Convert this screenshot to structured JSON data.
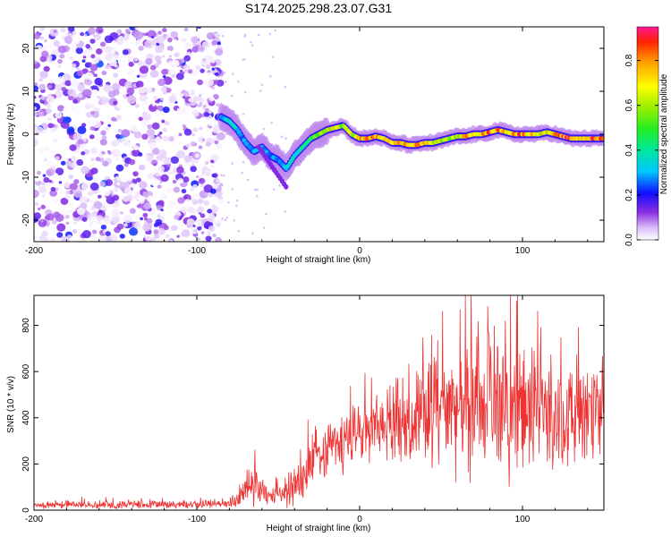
{
  "title": "S174.2025.298.23.07.G31",
  "colors": {
    "snr_line": "#ee3333",
    "axis": "#000000",
    "background": "#ffffff"
  },
  "chart_data": [
    {
      "type": "heatmap",
      "name": "spectrogram",
      "xlabel": "Height of straight line (km)",
      "ylabel": "Frequency (Hz)",
      "xlim": [
        -200,
        150
      ],
      "ylim": [
        -25,
        25
      ],
      "x_ticks": [
        -200,
        -100,
        0,
        100
      ],
      "y_ticks": [
        -20,
        -10,
        0,
        10,
        20
      ],
      "colorbar": {
        "label": "Normalized spectral amplitude",
        "range": [
          0,
          0.95
        ],
        "ticks": [
          "0.0",
          "0.2",
          "0.4",
          "0.6",
          "0.8"
        ],
        "tick_values": [
          0.0,
          0.2,
          0.4,
          0.6,
          0.8
        ]
      },
      "noise_region": {
        "x_range": [
          -200,
          -85
        ],
        "y_range": [
          -25,
          25
        ],
        "amplitude": 0.12
      },
      "ridge": {
        "x": [
          -85,
          -80,
          -75,
          -70,
          -65,
          -60,
          -55,
          -50,
          -45,
          -40,
          -35,
          -30,
          -25,
          -20,
          -15,
          -10,
          -5,
          0,
          5,
          10,
          15,
          20,
          25,
          30,
          35,
          40,
          45,
          50,
          55,
          60,
          65,
          70,
          75,
          80,
          85,
          90,
          95,
          100,
          105,
          110,
          115,
          120,
          125,
          130,
          135,
          140,
          145,
          150
        ],
        "freq": [
          4,
          3,
          1,
          -2,
          -4,
          -3,
          -5,
          -6,
          -8,
          -5,
          -3,
          -1,
          0,
          1,
          1.5,
          2,
          0,
          -1,
          -1,
          -0.5,
          -1,
          -2,
          -2,
          -2.5,
          -2.5,
          -2,
          -2,
          -1.5,
          -1,
          -0.5,
          -0.5,
          0,
          0,
          0.5,
          1,
          0.5,
          0,
          0,
          0,
          0,
          0.5,
          0,
          -0.5,
          -1,
          -1,
          -1,
          -1,
          -1
        ],
        "amp": [
          0.3,
          0.4,
          0.35,
          0.3,
          0.3,
          0.3,
          0.3,
          0.3,
          0.35,
          0.4,
          0.45,
          0.5,
          0.6,
          0.7,
          0.75,
          0.6,
          0.7,
          0.8,
          0.9,
          0.8,
          0.85,
          0.9,
          0.8,
          0.85,
          0.9,
          0.8,
          0.7,
          0.7,
          0.6,
          0.7,
          0.8,
          0.9,
          0.8,
          0.9,
          0.9,
          0.8,
          0.9,
          0.9,
          0.8,
          0.8,
          0.7,
          0.8,
          0.9,
          0.9,
          0.8,
          0.9,
          0.9,
          0.9
        ]
      }
    },
    {
      "type": "line",
      "name": "snr",
      "xlabel": "Height of straight line (km)",
      "ylabel": "SNR (10 * v/v)",
      "xlim": [
        -200,
        150
      ],
      "ylim": [
        0,
        930
      ],
      "x_ticks": [
        -200,
        -100,
        0,
        100
      ],
      "y_ticks": [
        0,
        200,
        400,
        600,
        800
      ],
      "x": [
        -200,
        -180,
        -160,
        -140,
        -120,
        -100,
        -80,
        -75,
        -70,
        -65,
        -60,
        -55,
        -50,
        -45,
        -40,
        -35,
        -30,
        -25,
        -20,
        -15,
        -10,
        -5,
        0,
        10,
        20,
        30,
        40,
        50,
        60,
        70,
        80,
        90,
        100,
        110,
        120,
        130,
        140,
        150
      ],
      "y": [
        20,
        25,
        22,
        25,
        22,
        25,
        30,
        40,
        80,
        120,
        90,
        60,
        50,
        70,
        100,
        140,
        200,
        250,
        280,
        280,
        290,
        320,
        330,
        360,
        380,
        400,
        410,
        430,
        450,
        440,
        450,
        430,
        430,
        420,
        410,
        410,
        400,
        400
      ],
      "spread": [
        15,
        15,
        15,
        15,
        15,
        15,
        20,
        30,
        60,
        90,
        70,
        40,
        40,
        50,
        80,
        100,
        120,
        120,
        130,
        120,
        120,
        130,
        130,
        140,
        150,
        170,
        200,
        230,
        260,
        270,
        270,
        270,
        260,
        240,
        230,
        220,
        200,
        190
      ]
    }
  ]
}
